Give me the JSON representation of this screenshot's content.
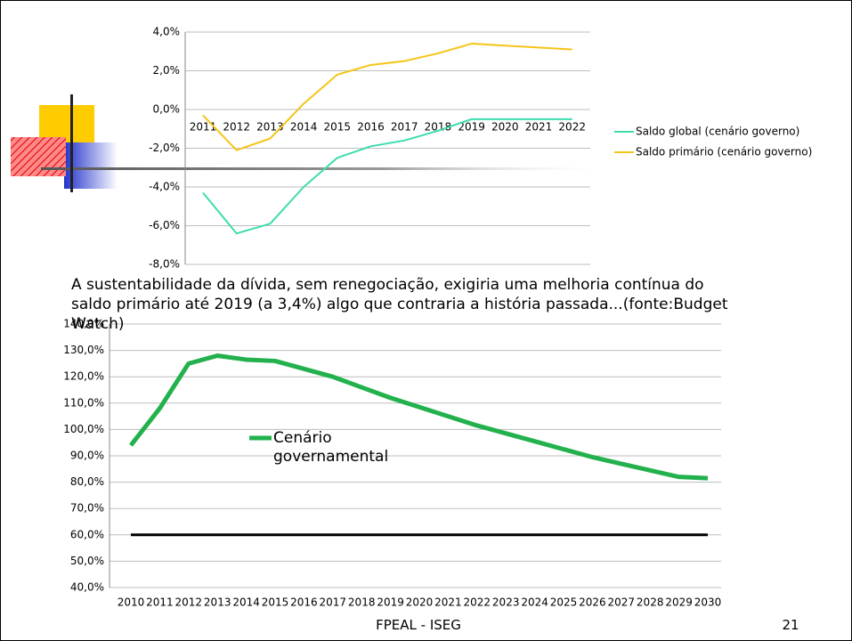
{
  "chart_data": [
    {
      "type": "line",
      "categories": [
        "2011",
        "2012",
        "2013",
        "2014",
        "2015",
        "2016",
        "2017",
        "2018",
        "2019",
        "2020",
        "2021",
        "2022"
      ],
      "series": [
        {
          "name": "Saldo global (cenário governo)",
          "color": "#3ddcae",
          "values": [
            -4.3,
            -6.4,
            -5.9,
            -4.0,
            -2.5,
            -1.9,
            -1.6,
            -1.1,
            -0.5,
            -0.5,
            -0.5,
            -0.5
          ]
        },
        {
          "name": "Saldo primário (cenário governo)",
          "color": "#f5c518",
          "values": [
            -0.3,
            -2.1,
            -1.5,
            0.3,
            1.8,
            2.3,
            2.5,
            2.9,
            3.4,
            3.3,
            3.2,
            3.1
          ]
        }
      ],
      "ylim": [
        -8,
        4
      ],
      "yticks": [
        {
          "value": -8,
          "label": "-8,0%"
        },
        {
          "value": -6,
          "label": "-6,0%"
        },
        {
          "value": -4,
          "label": "-4,0%"
        },
        {
          "value": -2,
          "label": "-2,0%"
        },
        {
          "value": 0,
          "label": "0,0%"
        },
        {
          "value": 2,
          "label": "2,0%"
        },
        {
          "value": 4,
          "label": "4,0%"
        }
      ],
      "grid": true,
      "legend": "right"
    },
    {
      "type": "line",
      "categories": [
        "2010",
        "2011",
        "2012",
        "2013",
        "2014",
        "2015",
        "2016",
        "2017",
        "2018",
        "2019",
        "2020",
        "2021",
        "2022",
        "2023",
        "2024",
        "2025",
        "2026",
        "2027",
        "2028",
        "2029",
        "2030"
      ],
      "series": [
        {
          "name": "Cenário governamental",
          "color": "#22b14c",
          "values": [
            94,
            108,
            125,
            128,
            126.5,
            126,
            123,
            120,
            116,
            112,
            108.5,
            105,
            101.5,
            98.5,
            95.5,
            92.5,
            89.5,
            87,
            84.5,
            82,
            81.5
          ]
        },
        {
          "color": "#000000",
          "values": [
            60,
            60,
            60,
            60,
            60,
            60,
            60,
            60,
            60,
            60,
            60,
            60,
            60,
            60,
            60,
            60,
            60,
            60,
            60,
            60,
            60
          ]
        }
      ],
      "ylim": [
        40,
        140
      ],
      "yticks": [
        {
          "value": 40,
          "label": "40,0%"
        },
        {
          "value": 50,
          "label": "50,0%"
        },
        {
          "value": 60,
          "label": "60,0%"
        },
        {
          "value": 70,
          "label": "70,0%"
        },
        {
          "value": 80,
          "label": "80,0%"
        },
        {
          "value": 90,
          "label": "90,0%"
        },
        {
          "value": 100,
          "label": "100,0%"
        },
        {
          "value": 110,
          "label": "110,0%"
        },
        {
          "value": 120,
          "label": "120,0%"
        },
        {
          "value": 130,
          "label": "130,0%"
        },
        {
          "value": 140,
          "label": "140,0%"
        }
      ],
      "grid": true,
      "legend": "inside"
    }
  ],
  "slide": {
    "caption": "A sustentabilidade da dívida, sem renegociação, exigiria uma melhoria contínua do saldo primário até 2019 (a 3,4%) algo que contraria a história passada...(fonte:Budget Watch)",
    "footer": "FPEAL - ISEG",
    "page": "21"
  }
}
